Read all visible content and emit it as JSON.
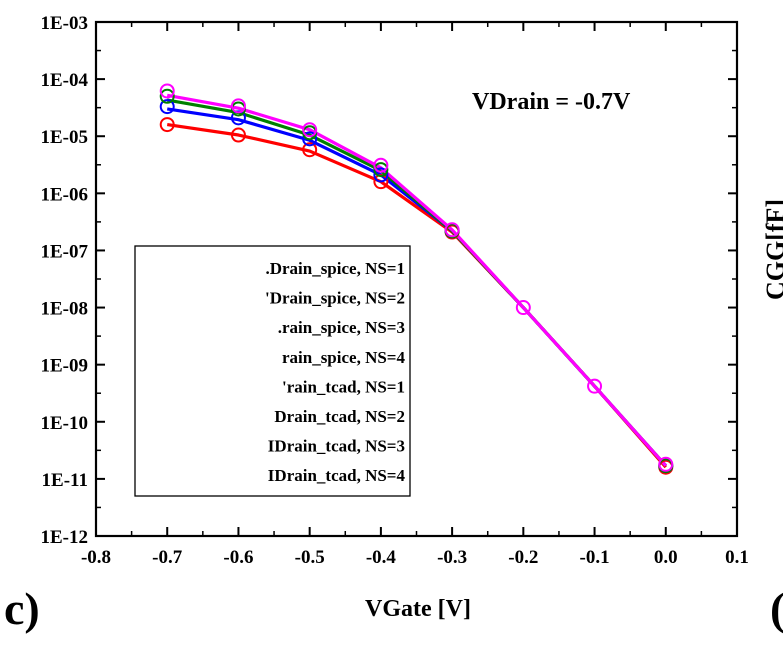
{
  "chart_data": {
    "type": "line",
    "title": "",
    "xlabel": "VGate [V]",
    "ylabel": "",
    "xlim": [
      -0.8,
      0.1
    ],
    "ylim": [
      1e-12,
      0.001
    ],
    "yscale": "log",
    "xticks": [
      "-0.8",
      "-0.7",
      "-0.6",
      "-0.5",
      "-0.4",
      "-0.3",
      "-0.2",
      "-0.1",
      "0.0",
      "0.1"
    ],
    "yticks": [
      "1E-12",
      "1E-11",
      "1E-10",
      "1E-09",
      "1E-08",
      "1E-07",
      "1E-06",
      "1E-05",
      "1E-04",
      "1E-03"
    ],
    "annotation": "VDrain = -0.7V",
    "panel_label": "c)",
    "right_panel_label": "(",
    "right_axis_fragment": "CGG[fF]",
    "legend_placement": "lower-left",
    "legend_visible_labels": [
      ".Drain_spice, NS=1",
      "'Drain_spice, NS=2",
      ".rain_spice, NS=3",
      "rain_spice, NS=4",
      "'rain_tcad, NS=1",
      "Drain_tcad, NS=2",
      "IDrain_tcad, NS=3",
      "IDrain_tcad, NS=4"
    ],
    "series": [
      {
        "kind": "line",
        "color": "#ff0000",
        "x": [
          -0.7,
          -0.6,
          -0.5,
          -0.4,
          -0.3,
          -0.2,
          -0.1,
          0.0
        ],
        "y": [
          1.6e-05,
          1.05e-05,
          5.5e-06,
          1.6e-06,
          2.1e-07,
          1e-08,
          4.2e-10,
          1.6e-11
        ]
      },
      {
        "kind": "line",
        "color": "#0000ff",
        "x": [
          -0.7,
          -0.6,
          -0.5,
          -0.4,
          -0.3,
          -0.2,
          -0.1,
          0.0
        ],
        "y": [
          3e-05,
          1.95e-05,
          8.5e-06,
          2.1e-06,
          2.2e-07,
          1e-08,
          4.2e-10,
          1.7e-11
        ]
      },
      {
        "kind": "line",
        "color": "#008000",
        "x": [
          -0.7,
          -0.6,
          -0.5,
          -0.4,
          -0.3,
          -0.2,
          -0.1,
          0.0
        ],
        "y": [
          4.3e-05,
          2.6e-05,
          1.05e-05,
          2.5e-06,
          2.2e-07,
          1e-08,
          4.2e-10,
          1.7e-11
        ]
      },
      {
        "kind": "line",
        "color": "#ff00ff",
        "x": [
          -0.7,
          -0.6,
          -0.5,
          -0.4,
          -0.3,
          -0.2,
          -0.1,
          0.0
        ],
        "y": [
          5.2e-05,
          3.1e-05,
          1.3e-05,
          2.8e-06,
          2.3e-07,
          1e-08,
          4.2e-10,
          1.7e-11
        ]
      },
      {
        "kind": "marker",
        "color": "#ff0000",
        "x": [
          -0.7,
          -0.6,
          -0.5,
          -0.4,
          -0.3,
          0.0
        ],
        "y": [
          1.6e-05,
          1.05e-05,
          5.8e-06,
          1.6e-06,
          2.1e-07,
          1.6e-11
        ]
      },
      {
        "kind": "marker",
        "color": "#0000ff",
        "x": [
          -0.7,
          -0.6,
          -0.5,
          -0.4,
          -0.3,
          0.0
        ],
        "y": [
          3.3e-05,
          2.1e-05,
          9e-06,
          2.1e-06,
          2.2e-07,
          1.7e-11
        ]
      },
      {
        "kind": "marker",
        "color": "#008000",
        "x": [
          -0.7,
          -0.6,
          -0.5,
          -0.4,
          -0.3,
          0.0
        ],
        "y": [
          5e-05,
          3e-05,
          1.15e-05,
          2.6e-06,
          2.2e-07,
          1.7e-11
        ]
      },
      {
        "kind": "marker",
        "color": "#ff00ff",
        "x": [
          -0.7,
          -0.6,
          -0.5,
          -0.4,
          -0.3,
          -0.2,
          -0.1,
          0.0
        ],
        "y": [
          6.2e-05,
          3.4e-05,
          1.3e-05,
          3.1e-06,
          2.3e-07,
          1e-08,
          4.2e-10,
          1.8e-11
        ]
      }
    ]
  }
}
